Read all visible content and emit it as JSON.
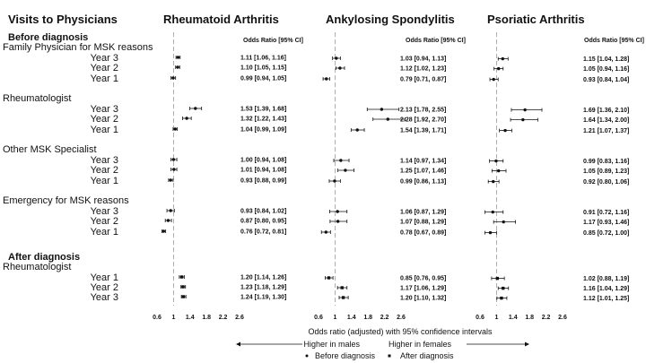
{
  "rows_title": "Visits to Physicians",
  "rows": [
    {
      "label": "Before diagnosis",
      "kind": "section"
    },
    {
      "label": "Family Physician for MSK reasons",
      "kind": "group"
    },
    {
      "label": "Year 3",
      "kind": "data"
    },
    {
      "label": "Year 2",
      "kind": "data"
    },
    {
      "label": "Year 1",
      "kind": "data"
    },
    {
      "label": "Rheumatologist",
      "kind": "group"
    },
    {
      "label": "Year 3",
      "kind": "data"
    },
    {
      "label": "Year 2",
      "kind": "data"
    },
    {
      "label": "Year 1",
      "kind": "data"
    },
    {
      "label": "Other MSK Specialist",
      "kind": "group"
    },
    {
      "label": "Year 3",
      "kind": "data"
    },
    {
      "label": "Year 2",
      "kind": "data"
    },
    {
      "label": "Year 1",
      "kind": "data"
    },
    {
      "label": "Emergency for MSK reasons",
      "kind": "group"
    },
    {
      "label": "Year 3",
      "kind": "data"
    },
    {
      "label": "Year 2",
      "kind": "data"
    },
    {
      "label": "Year 1",
      "kind": "data"
    },
    {
      "label": "After diagnosis",
      "kind": "section"
    },
    {
      "label": "Rheumatologist",
      "kind": "group"
    },
    {
      "label": "Year 1",
      "kind": "data"
    },
    {
      "label": "Year 2",
      "kind": "data"
    },
    {
      "label": "Year 3",
      "kind": "data"
    }
  ],
  "chart_data": {
    "type": "forest",
    "reference_line": 1,
    "xlim": [
      0.6,
      2.6
    ],
    "xticks": [
      "0.6",
      "1",
      "1.4",
      "1.8",
      "2.2",
      "2.6"
    ],
    "xlabel": "Odds ratio (adjusted) with 95% confidence intervals",
    "direction_labels": {
      "left": "Higher in males",
      "right": "Higher in females"
    },
    "legend": [
      {
        "label": "Before diagnosis",
        "marker": "circle"
      },
      {
        "label": "After diagnosis",
        "marker": "square"
      }
    ],
    "column_header": "Odds Ratio [95% CI]",
    "panels": [
      {
        "title": "Rheumatoid Arthritis",
        "points": [
          {
            "or": 1.11,
            "lo": 1.06,
            "hi": 1.16,
            "text": "1.11 [1.06, 1.16]",
            "marker": "circle"
          },
          {
            "or": 1.1,
            "lo": 1.05,
            "hi": 1.15,
            "text": "1.10 [1.05, 1.15]",
            "marker": "circle"
          },
          {
            "or": 0.99,
            "lo": 0.94,
            "hi": 1.05,
            "text": "0.99 [0.94, 1.05]",
            "marker": "circle"
          },
          {
            "or": 1.53,
            "lo": 1.39,
            "hi": 1.68,
            "text": "1.53 [1.39, 1.68]",
            "marker": "circle"
          },
          {
            "or": 1.32,
            "lo": 1.22,
            "hi": 1.43,
            "text": "1.32 [1.22, 1.43]",
            "marker": "circle"
          },
          {
            "or": 1.04,
            "lo": 0.99,
            "hi": 1.09,
            "text": "1.04 [0.99, 1.09]",
            "marker": "circle"
          },
          {
            "or": 1.0,
            "lo": 0.94,
            "hi": 1.08,
            "text": "1.00 [0.94, 1.08]",
            "marker": "circle"
          },
          {
            "or": 1.01,
            "lo": 0.94,
            "hi": 1.08,
            "text": "1.01 [0.94, 1.08]",
            "marker": "circle"
          },
          {
            "or": 0.93,
            "lo": 0.88,
            "hi": 0.99,
            "text": "0.93 [0.88, 0.99]",
            "marker": "circle"
          },
          {
            "or": 0.93,
            "lo": 0.84,
            "hi": 1.02,
            "text": "0.93 [0.84, 1.02]",
            "marker": "circle"
          },
          {
            "or": 0.87,
            "lo": 0.8,
            "hi": 0.95,
            "text": "0.87 [0.80, 0.95]",
            "marker": "circle"
          },
          {
            "or": 0.76,
            "lo": 0.72,
            "hi": 0.81,
            "text": "0.76 [0.72, 0.81]",
            "marker": "circle"
          },
          {
            "or": 1.2,
            "lo": 1.14,
            "hi": 1.26,
            "text": "1.20 [1.14, 1.26]",
            "marker": "square"
          },
          {
            "or": 1.23,
            "lo": 1.18,
            "hi": 1.29,
            "text": "1.23 [1.18, 1.29]",
            "marker": "square"
          },
          {
            "or": 1.24,
            "lo": 1.19,
            "hi": 1.3,
            "text": "1.24 [1.19, 1.30]",
            "marker": "square"
          }
        ]
      },
      {
        "title": "Ankylosing Spondylitis",
        "points": [
          {
            "or": 1.03,
            "lo": 0.94,
            "hi": 1.13,
            "text": "1.03 [0.94, 1.13]",
            "marker": "circle"
          },
          {
            "or": 1.12,
            "lo": 1.02,
            "hi": 1.23,
            "text": "1.12 [1.02, 1.23]",
            "marker": "circle"
          },
          {
            "or": 0.79,
            "lo": 0.71,
            "hi": 0.87,
            "text": "0.79 [0.71, 0.87]",
            "marker": "circle"
          },
          {
            "or": 2.13,
            "lo": 1.78,
            "hi": 2.55,
            "text": "2.13 [1.78, 2.55]",
            "marker": "circle"
          },
          {
            "or": 2.28,
            "lo": 1.92,
            "hi": 2.7,
            "text": "2.28 [1.92, 2.70]",
            "marker": "circle"
          },
          {
            "or": 1.54,
            "lo": 1.39,
            "hi": 1.71,
            "text": "1.54 [1.39, 1.71]",
            "marker": "circle"
          },
          {
            "or": 1.14,
            "lo": 0.97,
            "hi": 1.34,
            "text": "1.14 [0.97, 1.34]",
            "marker": "circle"
          },
          {
            "or": 1.25,
            "lo": 1.07,
            "hi": 1.46,
            "text": "1.25 [1.07, 1.46]",
            "marker": "circle"
          },
          {
            "or": 0.99,
            "lo": 0.86,
            "hi": 1.13,
            "text": "0.99 [0.86, 1.13]",
            "marker": "circle"
          },
          {
            "or": 1.06,
            "lo": 0.87,
            "hi": 1.29,
            "text": "1.06 [0.87, 1.29]",
            "marker": "circle"
          },
          {
            "or": 1.07,
            "lo": 0.88,
            "hi": 1.29,
            "text": "1.07 [0.88, 1.29]",
            "marker": "circle"
          },
          {
            "or": 0.78,
            "lo": 0.67,
            "hi": 0.89,
            "text": "0.78 [0.67, 0.89]",
            "marker": "circle"
          },
          {
            "or": 0.85,
            "lo": 0.76,
            "hi": 0.95,
            "text": "0.85 [0.76, 0.95]",
            "marker": "square"
          },
          {
            "or": 1.17,
            "lo": 1.06,
            "hi": 1.29,
            "text": "1.17 [1.06, 1.29]",
            "marker": "square"
          },
          {
            "or": 1.2,
            "lo": 1.1,
            "hi": 1.32,
            "text": "1.20 [1.10, 1.32]",
            "marker": "square"
          }
        ]
      },
      {
        "title": "Psoriatic Arthritis",
        "points": [
          {
            "or": 1.15,
            "lo": 1.04,
            "hi": 1.28,
            "text": "1.15 [1.04, 1.28]",
            "marker": "circle"
          },
          {
            "or": 1.05,
            "lo": 0.94,
            "hi": 1.16,
            "text": "1.05 [0.94, 1.16]",
            "marker": "circle"
          },
          {
            "or": 0.93,
            "lo": 0.84,
            "hi": 1.04,
            "text": "0.93 [0.84, 1.04]",
            "marker": "circle"
          },
          {
            "or": 1.69,
            "lo": 1.36,
            "hi": 2.1,
            "text": "1.69 [1.36, 2.10]",
            "marker": "circle"
          },
          {
            "or": 1.64,
            "lo": 1.34,
            "hi": 2.0,
            "text": "1.64 [1.34, 2.00]",
            "marker": "circle"
          },
          {
            "or": 1.21,
            "lo": 1.07,
            "hi": 1.37,
            "text": "1.21 [1.07, 1.37]",
            "marker": "circle"
          },
          {
            "or": 0.99,
            "lo": 0.83,
            "hi": 1.16,
            "text": "0.99 [0.83, 1.16]",
            "marker": "circle"
          },
          {
            "or": 1.05,
            "lo": 0.89,
            "hi": 1.23,
            "text": "1.05 [0.89, 1.23]",
            "marker": "circle"
          },
          {
            "or": 0.92,
            "lo": 0.8,
            "hi": 1.06,
            "text": "0.92 [0.80, 1.06]",
            "marker": "circle"
          },
          {
            "or": 0.91,
            "lo": 0.72,
            "hi": 1.16,
            "text": "0.91 [0.72, 1.16]",
            "marker": "circle"
          },
          {
            "or": 1.17,
            "lo": 0.93,
            "hi": 1.46,
            "text": "1.17 [0.93, 1.46]",
            "marker": "circle"
          },
          {
            "or": 0.85,
            "lo": 0.72,
            "hi": 1.0,
            "text": "0.85 [0.72, 1.00]",
            "marker": "circle"
          },
          {
            "or": 1.02,
            "lo": 0.88,
            "hi": 1.19,
            "text": "1.02 [0.88, 1.19]",
            "marker": "square"
          },
          {
            "or": 1.16,
            "lo": 1.04,
            "hi": 1.29,
            "text": "1.16 [1.04, 1.29]",
            "marker": "square"
          },
          {
            "or": 1.12,
            "lo": 1.01,
            "hi": 1.25,
            "text": "1.12 [1.01, 1.25]",
            "marker": "square"
          }
        ]
      }
    ]
  }
}
